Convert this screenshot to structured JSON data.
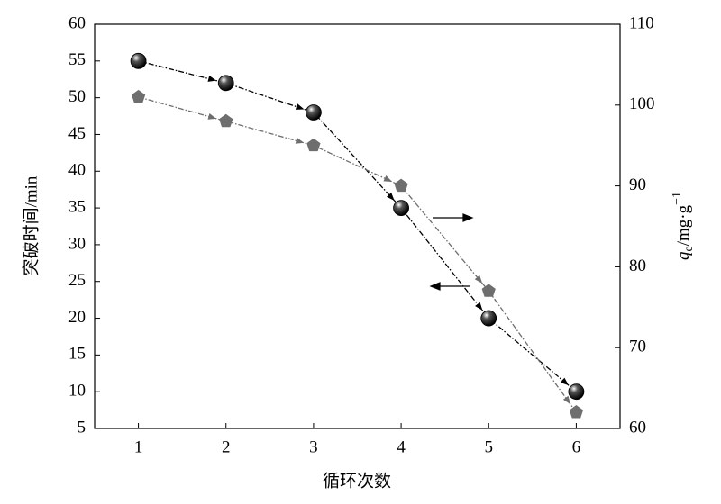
{
  "chart_data": {
    "type": "line",
    "xlabel": "循环次数",
    "ylabel": "突破时间/min",
    "y2label": [
      "q",
      "e",
      "/mg·g",
      "−1"
    ],
    "x": [
      1,
      2,
      3,
      4,
      5,
      6
    ],
    "xlim": [
      0.5,
      6.5
    ],
    "xticks": [
      1,
      2,
      3,
      4,
      5,
      6
    ],
    "ylim": [
      5,
      60
    ],
    "yticks": [
      5,
      10,
      15,
      20,
      25,
      30,
      35,
      40,
      45,
      50,
      55,
      60
    ],
    "y2lim": [
      60,
      110
    ],
    "y2ticks": [
      60,
      70,
      80,
      90,
      100,
      110
    ],
    "series": [
      {
        "color": "#000000",
        "marker": "sphere",
        "values": [
          55,
          52,
          48,
          35,
          20,
          10
        ]
      },
      {
        "color": "#6e6e6e",
        "marker": "pentagon",
        "axis": "y2",
        "values": [
          101,
          98,
          95,
          90,
          77,
          62
        ]
      }
    ]
  }
}
